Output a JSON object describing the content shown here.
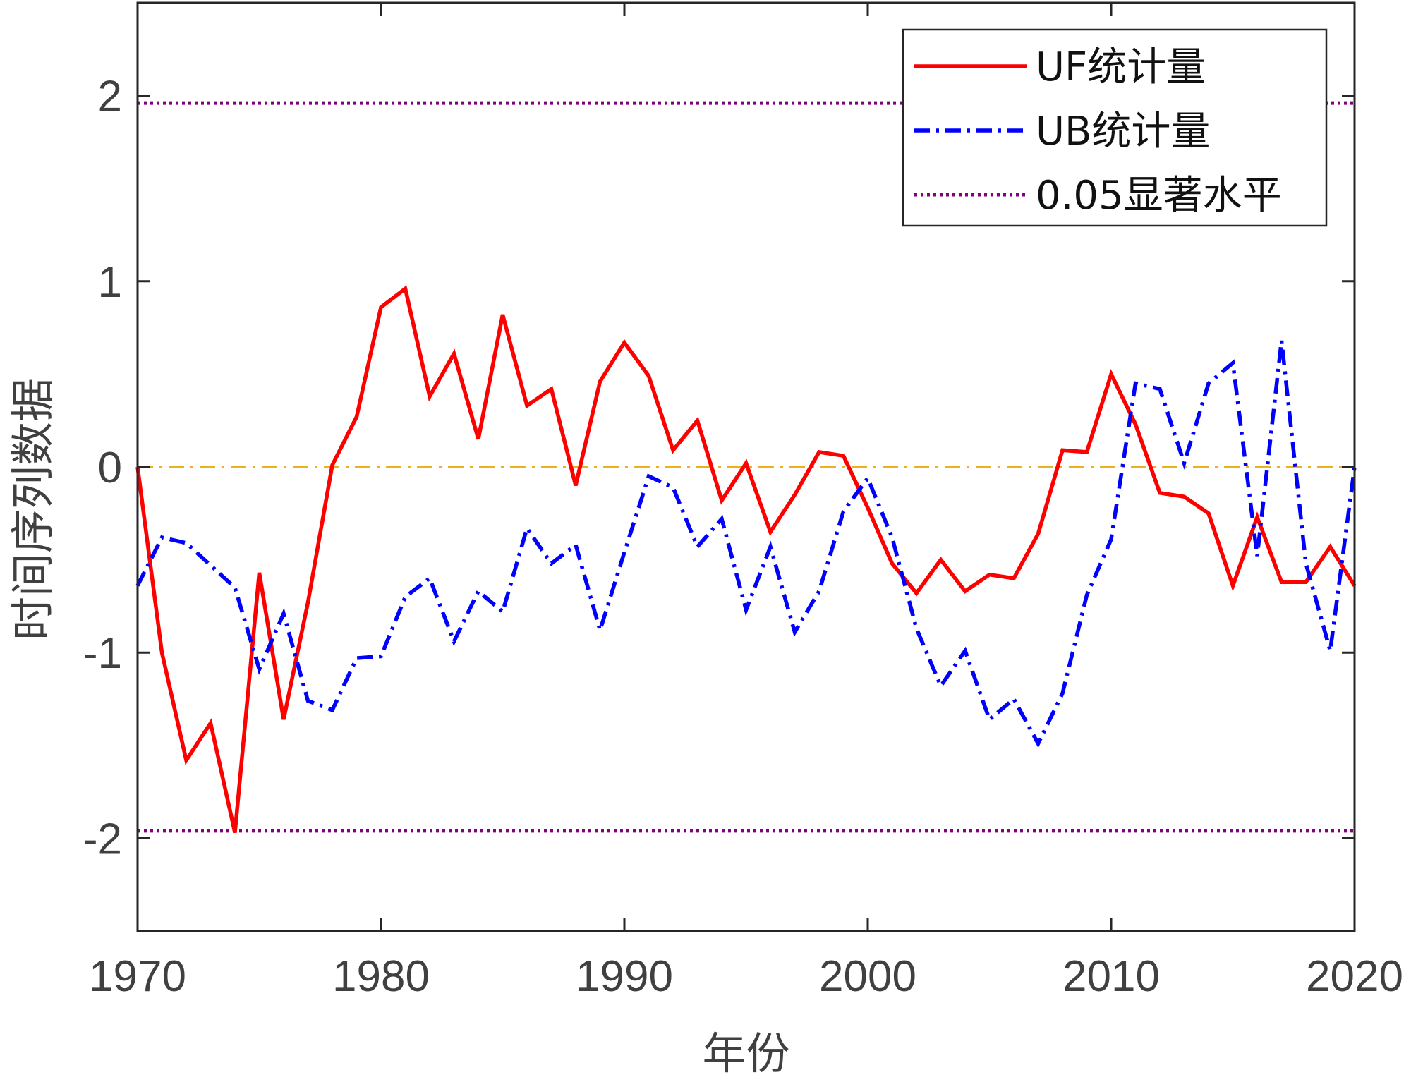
{
  "chart_data": {
    "type": "line",
    "title": "",
    "xlabel": "年份",
    "ylabel": "时间序列数据",
    "xlim": [
      1970,
      2020
    ],
    "ylim": [
      -2.5,
      2.5
    ],
    "xticks": [
      1970,
      1980,
      1990,
      2000,
      2010,
      2020
    ],
    "xtick_labels": [
      "1970",
      "1980",
      "1990",
      "2000",
      "2010",
      "2020"
    ],
    "yticks": [
      -2,
      -1,
      0,
      1,
      2
    ],
    "ytick_labels": [
      "-2",
      "-1",
      "0",
      "1",
      "2"
    ],
    "grid": false,
    "legend_position": "top-right",
    "x": [
      1970,
      1971,
      1972,
      1973,
      1974,
      1975,
      1976,
      1977,
      1978,
      1979,
      1980,
      1981,
      1982,
      1983,
      1984,
      1985,
      1986,
      1987,
      1988,
      1989,
      1990,
      1991,
      1992,
      1993,
      1994,
      1995,
      1996,
      1997,
      1998,
      1999,
      2000,
      2001,
      2002,
      2003,
      2004,
      2005,
      2006,
      2007,
      2008,
      2009,
      2010,
      2011,
      2012,
      2013,
      2014,
      2015,
      2016,
      2017,
      2018,
      2019,
      2020
    ],
    "series": [
      {
        "name": "UF统计量",
        "color": "#ff0000",
        "style": "solid",
        "values": [
          0,
          -1.0,
          -1.58,
          -1.38,
          -1.97,
          -0.57,
          -1.36,
          -0.73,
          0.01,
          0.27,
          0.86,
          0.96,
          0.38,
          0.61,
          0.15,
          0.82,
          0.33,
          0.42,
          -0.1,
          0.46,
          0.67,
          0.49,
          0.09,
          0.25,
          -0.18,
          0.02,
          -0.35,
          -0.15,
          0.08,
          0.06,
          -0.22,
          -0.52,
          -0.68,
          -0.5,
          -0.67,
          -0.58,
          -0.6,
          -0.36,
          0.09,
          0.08,
          0.5,
          0.23,
          -0.14,
          -0.16,
          -0.25,
          -0.64,
          -0.27,
          -0.62,
          -0.62,
          -0.43,
          -0.64
        ]
      },
      {
        "name": "UB统计量",
        "color": "#0000ff",
        "style": "dash-dot",
        "values": [
          -0.64,
          -0.38,
          -0.41,
          -0.53,
          -0.65,
          -1.09,
          -0.79,
          -1.26,
          -1.31,
          -1.03,
          -1.02,
          -0.7,
          -0.6,
          -0.94,
          -0.67,
          -0.78,
          -0.33,
          -0.52,
          -0.42,
          -0.88,
          -0.46,
          -0.05,
          -0.11,
          -0.43,
          -0.28,
          -0.77,
          -0.43,
          -0.89,
          -0.67,
          -0.24,
          -0.06,
          -0.38,
          -0.87,
          -1.18,
          -0.99,
          -1.36,
          -1.25,
          -1.49,
          -1.22,
          -0.69,
          -0.39,
          0.45,
          0.42,
          0.02,
          0.45,
          0.56,
          -0.48,
          0.68,
          -0.52,
          -0.99,
          0.0
        ]
      }
    ],
    "reference_lines": [
      {
        "name": "0.05显著水平",
        "color": "#800080",
        "style": "dotted",
        "values": [
          1.96,
          -1.96
        ]
      },
      {
        "name": "zero",
        "color": "#edb120",
        "style": "dash-dot",
        "values": [
          0
        ]
      }
    ]
  }
}
